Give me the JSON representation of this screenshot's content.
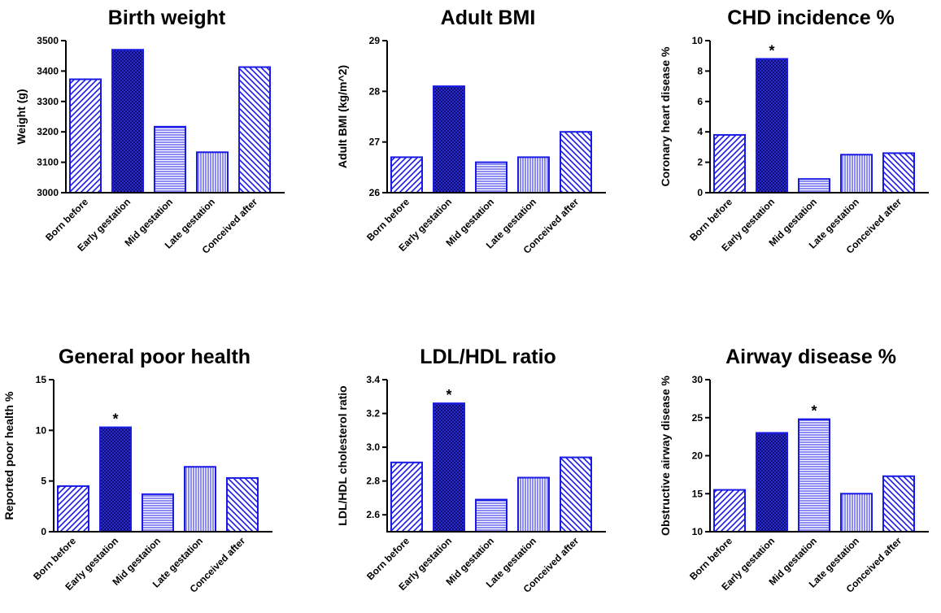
{
  "styles": {
    "bar_stroke": "#1a1ae6",
    "dark_fill": "#101070",
    "axis_color": "#000000"
  },
  "chart_data": [
    {
      "type": "bar",
      "title": "Birth weight",
      "ylabel": "Weight (g)",
      "ylim": [
        3000,
        3500
      ],
      "yticks": [
        3000,
        3100,
        3200,
        3300,
        3400,
        3500
      ],
      "categories": [
        "Born before",
        "Early gestation",
        "Mid gestation",
        "Late gestation",
        "Conceived after"
      ],
      "values": [
        3373,
        3470,
        3217,
        3133,
        3413
      ],
      "significant": [
        false,
        false,
        false,
        false,
        false
      ],
      "patterns": [
        "diag-up",
        "checker",
        "horiz",
        "vert",
        "diag-down"
      ],
      "grid": false,
      "legend": "none"
    },
    {
      "type": "bar",
      "title": "Adult BMI",
      "ylabel": "Adult BMI (kg/m^2)",
      "ylim": [
        26,
        29
      ],
      "yticks": [
        26,
        27,
        28,
        29
      ],
      "categories": [
        "Born before",
        "Early gestation",
        "Mid gestation",
        "Late gestation",
        "Conceived after"
      ],
      "values": [
        26.7,
        28.1,
        26.6,
        26.7,
        27.2
      ],
      "significant": [
        false,
        false,
        false,
        false,
        false
      ],
      "patterns": [
        "diag-up",
        "checker",
        "horiz",
        "vert",
        "diag-down"
      ],
      "grid": false,
      "legend": "none"
    },
    {
      "type": "bar",
      "title": "CHD incidence %",
      "ylabel": "Coronary heart disease %",
      "ylim": [
        0,
        10
      ],
      "yticks": [
        0,
        2,
        4,
        6,
        8,
        10
      ],
      "categories": [
        "Born before",
        "Early gestation",
        "Mid gestation",
        "Late gestation",
        "Conceived after"
      ],
      "values": [
        3.8,
        8.8,
        0.9,
        2.5,
        2.6
      ],
      "significant": [
        false,
        true,
        false,
        false,
        false
      ],
      "significance_mark": "*",
      "patterns": [
        "diag-up",
        "checker",
        "horiz",
        "vert",
        "diag-down"
      ],
      "grid": false,
      "legend": "none"
    },
    {
      "type": "bar",
      "title": "General poor health",
      "ylabel": "Reported poor health %",
      "ylim": [
        0,
        15
      ],
      "yticks": [
        0,
        5,
        10,
        15
      ],
      "categories": [
        "Born before",
        "Early gestation",
        "Mid gestation",
        "Late gestation",
        "Conceived after"
      ],
      "values": [
        4.5,
        10.3,
        3.7,
        6.4,
        5.3
      ],
      "significant": [
        false,
        true,
        false,
        false,
        false
      ],
      "significance_mark": "*",
      "patterns": [
        "diag-up",
        "checker",
        "horiz",
        "vert",
        "diag-down"
      ],
      "grid": false,
      "legend": "none"
    },
    {
      "type": "bar",
      "title": "LDL/HDL ratio",
      "ylabel": "LDL/HDL cholesterol ratio",
      "ylim": [
        2.5,
        3.4
      ],
      "yticks": [
        2.6,
        2.8,
        3.0,
        3.2,
        3.4
      ],
      "ytick_labels": [
        "2.6",
        "2.8",
        "3.0",
        "3.2",
        "3.4"
      ],
      "categories": [
        "Born before",
        "Early gestation",
        "Mid gestation",
        "Late gestation",
        "Conceived after"
      ],
      "values": [
        2.91,
        3.26,
        2.69,
        2.82,
        2.94
      ],
      "significant": [
        false,
        true,
        false,
        false,
        false
      ],
      "significance_mark": "*",
      "patterns": [
        "diag-up",
        "checker",
        "horiz",
        "vert",
        "diag-down"
      ],
      "grid": false,
      "legend": "none"
    },
    {
      "type": "bar",
      "title": "Airway disease %",
      "ylabel": "Obstructive airway disease %",
      "ylim": [
        10,
        30
      ],
      "yticks": [
        10,
        15,
        20,
        25,
        30
      ],
      "categories": [
        "Born before",
        "Early gestation",
        "Mid gestation",
        "Late gestation",
        "Conceived after"
      ],
      "values": [
        15.5,
        23.0,
        24.8,
        15.0,
        17.3
      ],
      "significant": [
        false,
        false,
        true,
        false,
        false
      ],
      "significance_mark": "*",
      "patterns": [
        "diag-up",
        "checker",
        "horiz",
        "vert",
        "diag-down"
      ],
      "grid": false,
      "legend": "none"
    }
  ]
}
